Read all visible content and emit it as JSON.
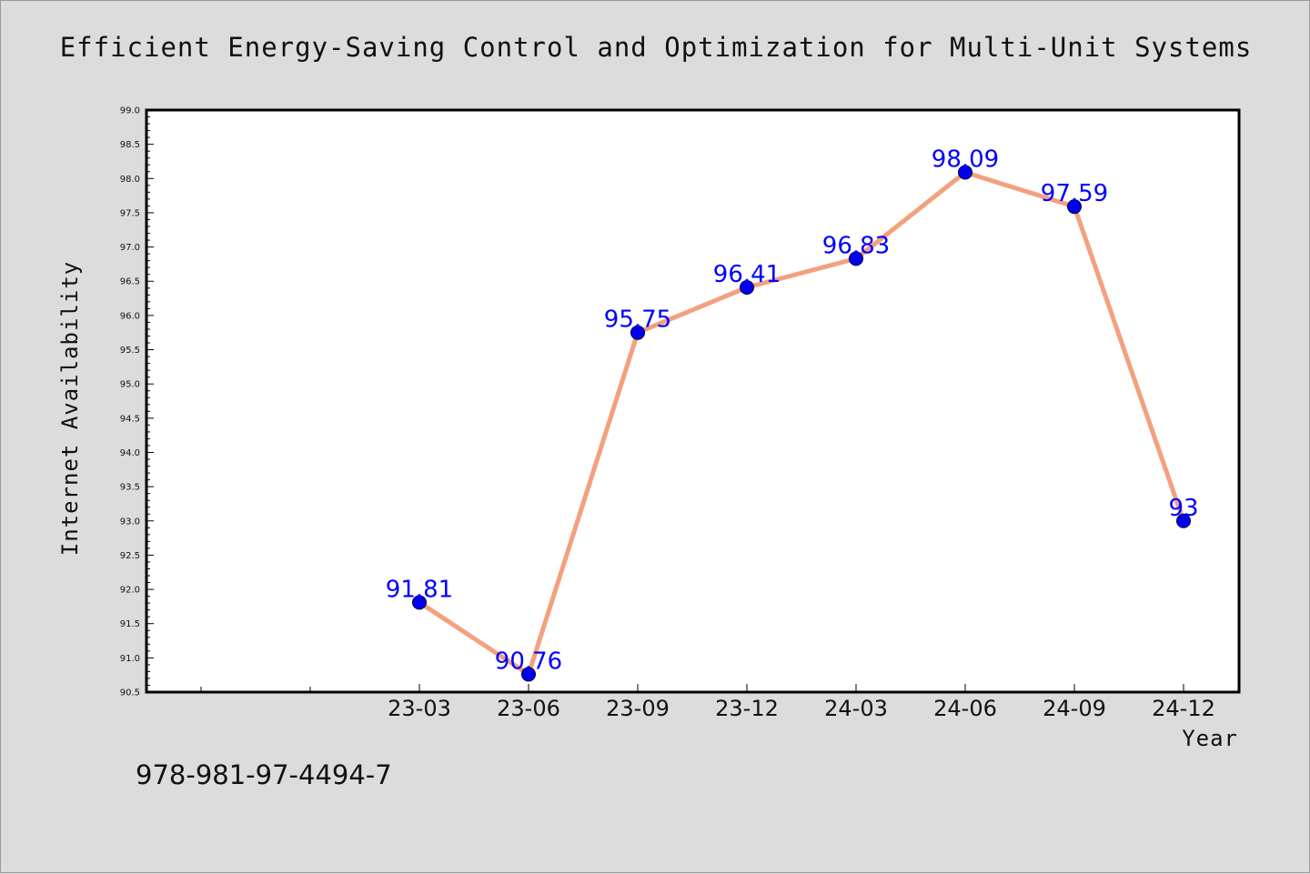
{
  "figure": {
    "background": "#dcdcdc",
    "identifier": "978-981-97-4494-7"
  },
  "chart_data": {
    "type": "line",
    "title": "Efficient Energy-Saving Control and Optimization for Multi-Unit Systems",
    "xlabel": "Year",
    "ylabel": "Internet Availability",
    "categories": [
      "23-03",
      "23-06",
      "23-09",
      "23-12",
      "24-03",
      "24-06",
      "24-09",
      "24-12"
    ],
    "series": [
      {
        "values": [
          91.81,
          90.76,
          95.75,
          96.41,
          96.83,
          98.09,
          97.59,
          93
        ],
        "labels": [
          "91.81",
          "90.76",
          "95.75",
          "96.41",
          "96.83",
          "98.09",
          "97.59",
          "93"
        ]
      }
    ],
    "ylim": [
      90.5,
      99.0
    ],
    "yticks": [
      "90.5",
      "91.0",
      "91.5",
      "92.0",
      "92.5",
      "93.0",
      "93.5",
      "94.0",
      "94.5",
      "95.0",
      "95.5",
      "96.0",
      "96.5",
      "97.0",
      "97.5",
      "98.0",
      "98.5",
      "99.0"
    ],
    "grid": false,
    "colors": {
      "line": "#f4a07e",
      "marker": "#0000ee",
      "label": "#0000ff"
    }
  }
}
